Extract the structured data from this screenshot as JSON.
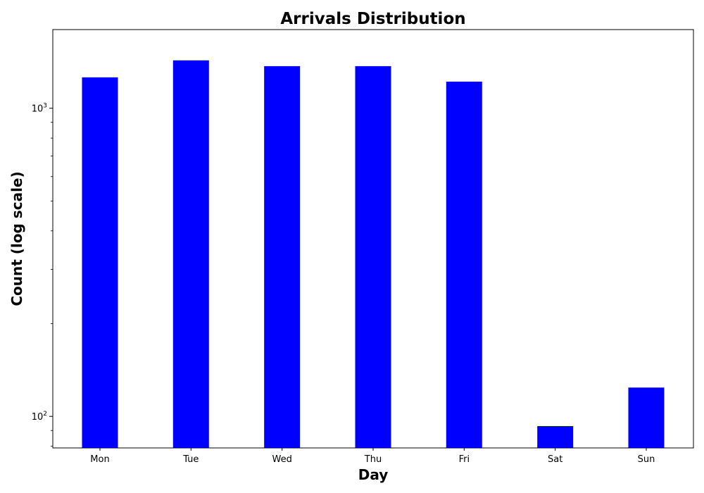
{
  "chart_data": {
    "type": "bar",
    "title": "Arrivals Distribution",
    "xlabel": "Day",
    "ylabel": "Count (log scale)",
    "yscale": "log",
    "ylim": [
      79,
      1800
    ],
    "categories": [
      "Mon",
      "Tue",
      "Wed",
      "Thu",
      "Fri",
      "Sat",
      "Sun"
    ],
    "values": [
      1260,
      1430,
      1370,
      1370,
      1220,
      93,
      124
    ],
    "yticks": [
      {
        "base": "10",
        "exp": "2",
        "value": 100
      },
      {
        "base": "10",
        "exp": "3",
        "value": 1000
      }
    ],
    "bar_color": "#0000ff",
    "grid": false,
    "legend": "none"
  }
}
